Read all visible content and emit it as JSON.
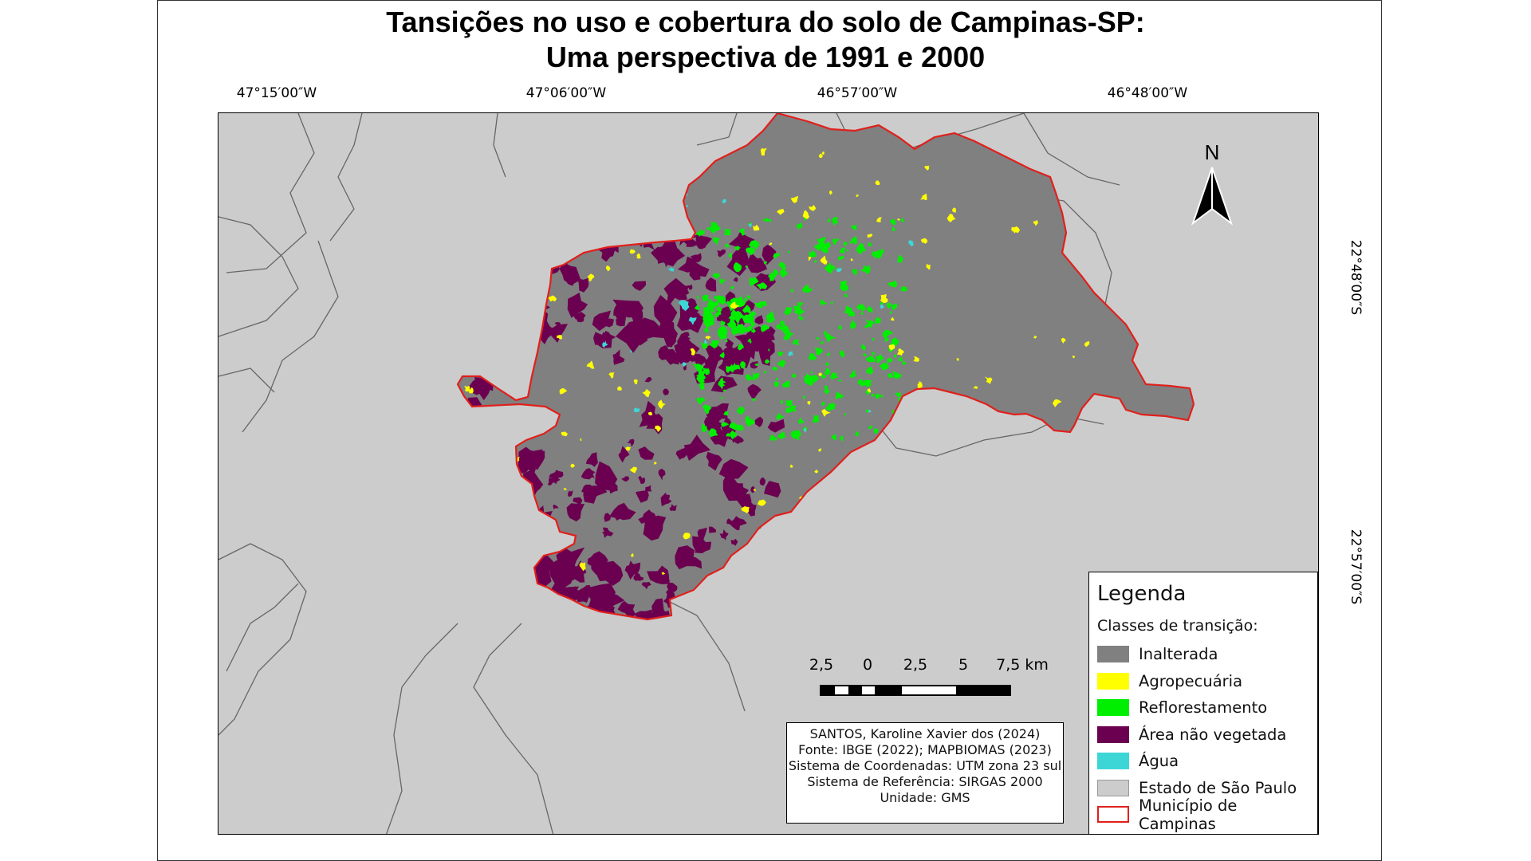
{
  "title": {
    "line1": "Tansições no uso e cobertura do solo de Campinas-SP:",
    "line2": "Uma perspectiva de 1991 e 2000"
  },
  "coordinates": {
    "top": [
      "47°15′00″W",
      "47°06′00″W",
      "46°57′00″W",
      "46°48′00″W"
    ],
    "right": [
      "22°48′00″S",
      "22°57′00″S"
    ]
  },
  "north_arrow": {
    "label": "N"
  },
  "scale_bar": {
    "labels": [
      "2,5",
      "0",
      "2,5",
      "5",
      "7,5 km"
    ]
  },
  "credits": {
    "lines": [
      "SANTOS, Karoline Xavier dos (2024)",
      "Fonte: IBGE (2022); MAPBIOMAS (2023)",
      "Sistema de Coordenadas: UTM zona 23 sul",
      "Sistema de Referência: SIRGAS 2000",
      "Unidade: GMS"
    ]
  },
  "legend": {
    "title": "Legenda",
    "subtitle": "Classes de transição:",
    "items": [
      {
        "label": "Inalterada",
        "color": "#808080",
        "border": "#808080"
      },
      {
        "label": "Agropecuária",
        "color": "#ffff00",
        "border": "#ffff00"
      },
      {
        "label": "Reflorestamento",
        "color": "#00ee00",
        "border": "#00ee00"
      },
      {
        "label": "Área não vegetada",
        "color": "#6b0050",
        "border": "#6b0050"
      },
      {
        "label": "Água",
        "color": "#3dd6d6",
        "border": "#3dd6d6"
      },
      {
        "label": "Estado de São Paulo",
        "color": "#cccccc",
        "border": "#999999"
      },
      {
        "label": "Município de Campinas",
        "color": "#ffffff",
        "border": "#e0201c"
      }
    ]
  },
  "colors": {
    "background_state": "#cccccc",
    "municipality_fill": "#808080",
    "municipality_border": "#e0201c",
    "non_vegetated": "#6b0050",
    "agriculture": "#ffff00",
    "reforestation": "#00ee00",
    "water": "#3dd6d6",
    "boundaries": "#666666"
  }
}
